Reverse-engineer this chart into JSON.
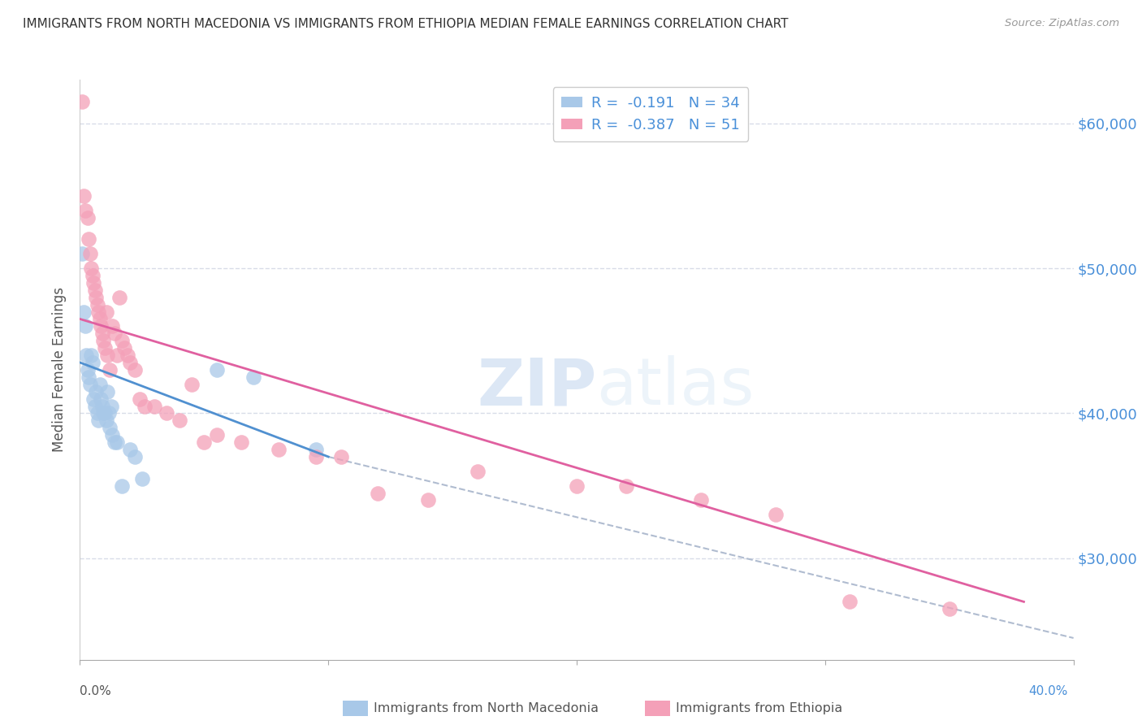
{
  "title": "IMMIGRANTS FROM NORTH MACEDONIA VS IMMIGRANTS FROM ETHIOPIA MEDIAN FEMALE EARNINGS CORRELATION CHART",
  "source": "Source: ZipAtlas.com",
  "ylabel": "Median Female Earnings",
  "ytick_labels": [
    "$30,000",
    "$40,000",
    "$50,000",
    "$60,000"
  ],
  "ytick_values": [
    30000,
    40000,
    50000,
    60000
  ],
  "xmin": 0.0,
  "xmax": 40.0,
  "ymin": 23000,
  "ymax": 63000,
  "legend_R_blue": "-0.191",
  "legend_N_blue": "34",
  "legend_R_pink": "-0.387",
  "legend_N_pink": "51",
  "color_blue": "#a8c8e8",
  "color_pink": "#f4a0b8",
  "color_blue_line": "#5090d0",
  "color_pink_line": "#e060a0",
  "color_dashed": "#b0bcd0",
  "watermark_zip": "ZIP",
  "watermark_atlas": "atlas",
  "blue_scatter_x": [
    0.1,
    0.15,
    0.2,
    0.25,
    0.3,
    0.35,
    0.4,
    0.45,
    0.5,
    0.55,
    0.6,
    0.65,
    0.7,
    0.75,
    0.8,
    0.85,
    0.9,
    0.95,
    1.0,
    1.05,
    1.1,
    1.15,
    1.2,
    1.25,
    1.3,
    1.4,
    1.5,
    1.7,
    2.0,
    2.2,
    2.5,
    5.5,
    7.0,
    9.5
  ],
  "blue_scatter_y": [
    51000,
    47000,
    46000,
    44000,
    43000,
    42500,
    42000,
    44000,
    43500,
    41000,
    40500,
    41500,
    40000,
    39500,
    42000,
    41000,
    40500,
    40000,
    40000,
    39500,
    41500,
    40000,
    39000,
    40500,
    38500,
    38000,
    38000,
    35000,
    37500,
    37000,
    35500,
    43000,
    42500,
    37500
  ],
  "pink_scatter_x": [
    0.1,
    0.15,
    0.2,
    0.3,
    0.35,
    0.4,
    0.45,
    0.5,
    0.55,
    0.6,
    0.65,
    0.7,
    0.75,
    0.8,
    0.85,
    0.9,
    0.95,
    1.0,
    1.05,
    1.1,
    1.2,
    1.3,
    1.4,
    1.5,
    1.6,
    1.7,
    1.8,
    1.9,
    2.0,
    2.2,
    2.4,
    2.6,
    3.0,
    3.5,
    4.0,
    4.5,
    5.0,
    5.5,
    6.5,
    8.0,
    9.5,
    10.5,
    12.0,
    14.0,
    16.0,
    20.0,
    22.0,
    25.0,
    28.0,
    31.0,
    35.0
  ],
  "pink_scatter_y": [
    61500,
    55000,
    54000,
    53500,
    52000,
    51000,
    50000,
    49500,
    49000,
    48500,
    48000,
    47500,
    47000,
    46500,
    46000,
    45500,
    45000,
    44500,
    47000,
    44000,
    43000,
    46000,
    45500,
    44000,
    48000,
    45000,
    44500,
    44000,
    43500,
    43000,
    41000,
    40500,
    40500,
    40000,
    39500,
    42000,
    38000,
    38500,
    38000,
    37500,
    37000,
    37000,
    34500,
    34000,
    36000,
    35000,
    35000,
    34000,
    33000,
    27000,
    26500
  ],
  "blue_line_x": [
    0.0,
    10.0
  ],
  "blue_line_y": [
    43500,
    37000
  ],
  "pink_line_x": [
    0.0,
    38.0
  ],
  "pink_line_y": [
    46500,
    27000
  ],
  "dashed_line_x": [
    10.0,
    40.0
  ],
  "dashed_line_y": [
    37000,
    24500
  ],
  "background_color": "#ffffff",
  "grid_color": "#d8dce8",
  "title_color": "#333333",
  "axis_label_color": "#4a90d9",
  "legend_text_color": "#4a90d9"
}
